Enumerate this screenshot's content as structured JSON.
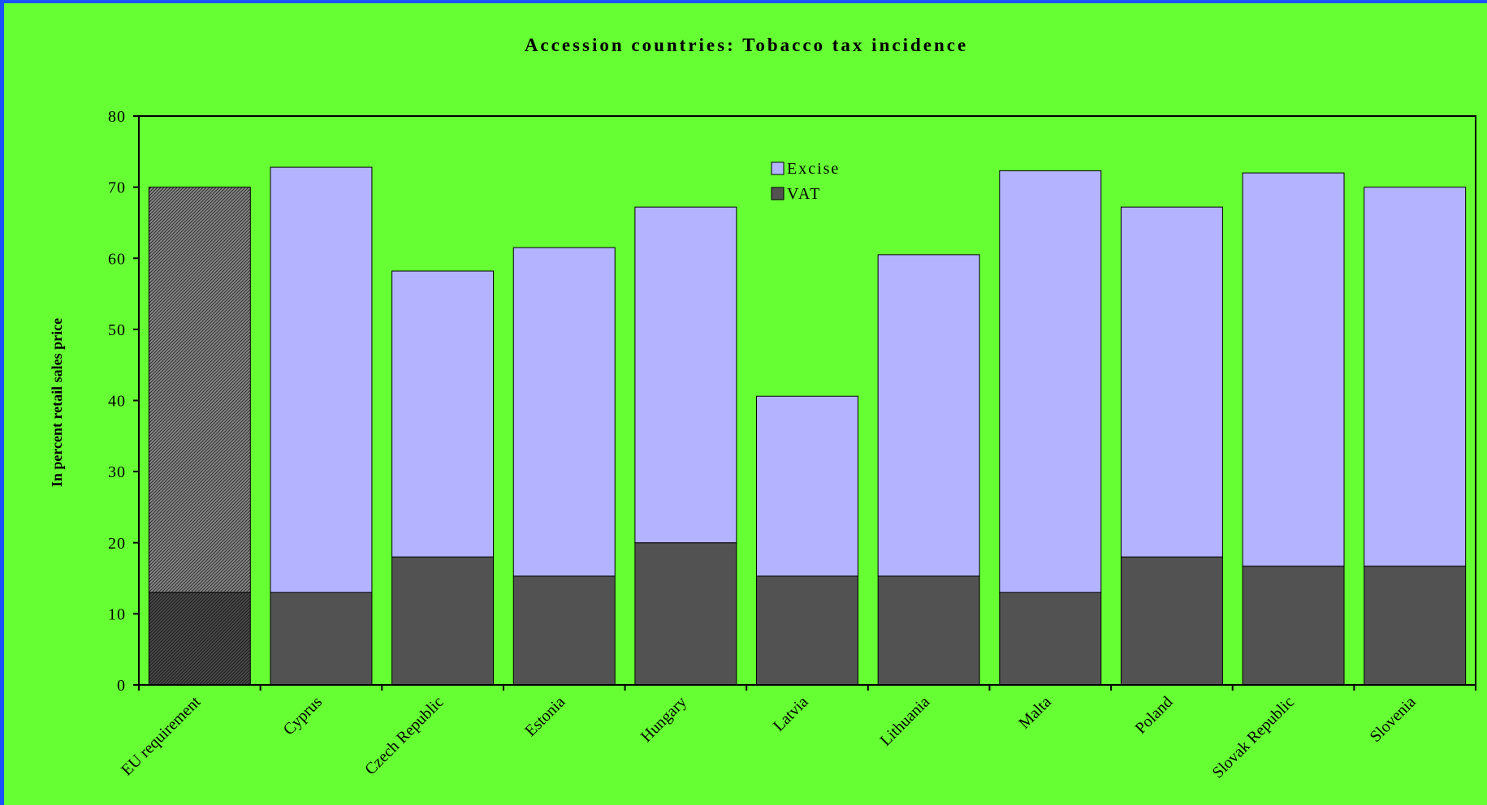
{
  "chart_data": {
    "type": "bar",
    "stacked": true,
    "title": "Accession countries: Tobacco tax incidence",
    "ylabel": "In percent retail sales price",
    "xlabel": "",
    "ylim": [
      0,
      80
    ],
    "yticks": [
      0,
      10,
      20,
      30,
      40,
      50,
      60,
      70,
      80
    ],
    "grid": false,
    "legend_position": "top-center",
    "categories": [
      "EU  requirement",
      "Cyprus",
      "Czech Republic",
      "Estonia",
      "Hungary",
      "Latvia",
      "Lithuania",
      "Malta",
      "Poland",
      "Slovak Republic",
      "Slovenia"
    ],
    "series": [
      {
        "name": "VAT",
        "color": "#525252",
        "values": [
          13,
          13,
          18,
          15.3,
          20,
          15.3,
          15.3,
          13,
          18,
          16.7,
          16.7
        ]
      },
      {
        "name": "Excise",
        "color": "#b3b3ff",
        "values": [
          57,
          59.8,
          40.2,
          46.2,
          47.2,
          25.3,
          45.2,
          59.3,
          49.2,
          55.3,
          53.3
        ]
      }
    ],
    "highlighted_category": "EU  requirement",
    "highlight_style": "hatched"
  }
}
